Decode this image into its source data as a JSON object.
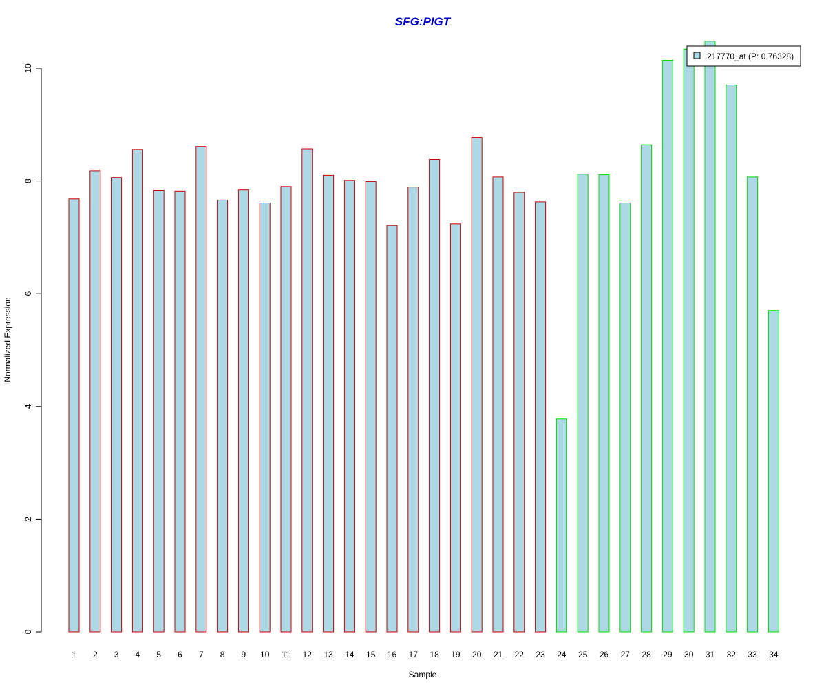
{
  "chart_data": {
    "type": "bar",
    "title": "SFG:PIGT",
    "xlabel": "Sample",
    "ylabel": "Normalized Expression",
    "ylim": [
      0,
      10.5
    ],
    "y_ticks": [
      0,
      2,
      4,
      6,
      8,
      10
    ],
    "grid": false,
    "legend_position": "top-right",
    "categories": [
      "1",
      "2",
      "3",
      "4",
      "5",
      "6",
      "7",
      "8",
      "9",
      "10",
      "11",
      "12",
      "13",
      "14",
      "15",
      "16",
      "17",
      "18",
      "19",
      "20",
      "21",
      "22",
      "23",
      "24",
      "25",
      "26",
      "27",
      "28",
      "29",
      "30",
      "31",
      "32",
      "33",
      "34"
    ],
    "series": [
      {
        "name": "217770_at (P: 0.76328)",
        "values": [
          7.68,
          8.18,
          8.06,
          8.56,
          7.83,
          7.82,
          8.61,
          7.66,
          7.84,
          7.61,
          7.9,
          8.57,
          8.1,
          8.01,
          7.99,
          7.21,
          7.89,
          8.38,
          7.24,
          8.77,
          8.07,
          7.8,
          7.63,
          3.78,
          8.12,
          8.11,
          7.61,
          8.64,
          10.14,
          10.34,
          10.48,
          9.7,
          8.07,
          5.7
        ]
      }
    ],
    "group_edge_colors": [
      "#cc0000",
      "#cc0000",
      "#cc0000",
      "#cc0000",
      "#cc0000",
      "#cc0000",
      "#cc0000",
      "#cc0000",
      "#cc0000",
      "#cc0000",
      "#cc0000",
      "#cc0000",
      "#cc0000",
      "#cc0000",
      "#cc0000",
      "#cc0000",
      "#cc0000",
      "#cc0000",
      "#cc0000",
      "#cc0000",
      "#cc0000",
      "#cc0000",
      "#cc0000",
      "#00dd00",
      "#00dd00",
      "#00dd00",
      "#00dd00",
      "#00dd00",
      "#00dd00",
      "#00dd00",
      "#00dd00",
      "#00dd00",
      "#00dd00",
      "#00dd00"
    ],
    "colors": {
      "fill": "#add8e6",
      "title": "#0000cc",
      "axis": "#000000"
    }
  }
}
